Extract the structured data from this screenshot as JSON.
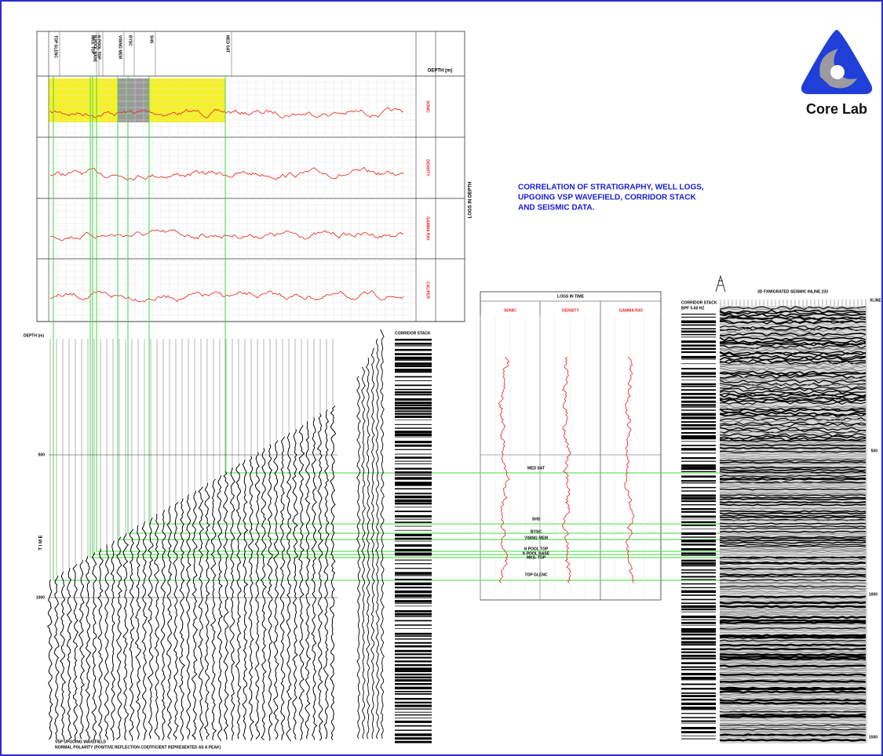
{
  "title": {
    "lines": [
      "CORRELATION OF STRATIGRAPHY, WELL LOGS,",
      "UPGOING VSP WAVEFIELD, CORRIDOR STACK",
      "AND SEISMIC DATA."
    ]
  },
  "logo": {
    "text": "Core Lab"
  },
  "depth_logs": {
    "label": "LOGS IN DEPTH",
    "depth_label": "DEPTH (m)",
    "tracks": [
      "SONIC",
      "DENSITY",
      "GAMMA RAY",
      "CALIPER"
    ]
  },
  "formations": [
    "TOP GLENC",
    "MKS. TOP",
    "N POOL BASE",
    "N POOL TOP",
    "VISING MEM",
    "BYSC",
    "SHS",
    "MED SAT"
  ],
  "vsp": {
    "depth_label": "DEPTH (m)",
    "time_label": "T I M E",
    "time_ticks": [
      500,
      1000
    ],
    "caption": [
      "VSP UPGOING WAVEFIELD",
      "NORMAL POLARITY (POSITIVE REFLECTION COEFFICIENT REPRESENTED AS A PEAK)"
    ]
  },
  "corridor_stack": {
    "label": "CORRIDOR STACK"
  },
  "time_logs": {
    "title": "LOGS IN TIME",
    "tracks": [
      "SONIC",
      "DENSITY",
      "GAMMA RAY"
    ]
  },
  "seismic": {
    "corridor_label": [
      "CORRIDOR STACK",
      "BPF 5-60 HZ"
    ],
    "title": "3D FXMIGRATED SEISMIC INLINE 233",
    "xline_label": "XLINE",
    "time_ticks": [
      500,
      1000,
      1500
    ]
  }
}
